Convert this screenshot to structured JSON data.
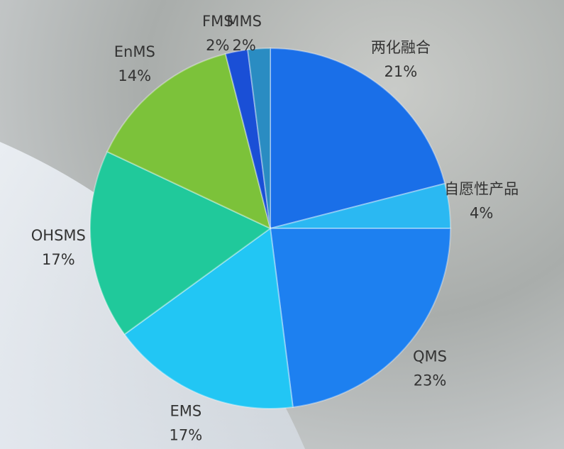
{
  "chart_data": {
    "type": "pie",
    "categories": [
      "两化融合",
      "自愿性产品",
      "QMS",
      "EMS",
      "OHSMS",
      "EnMS",
      "FMS",
      "MMS"
    ],
    "values": [
      21,
      4,
      23,
      17,
      17,
      14,
      2,
      2
    ],
    "value_labels": [
      "21%",
      "4%",
      "23%",
      "17%",
      "17%",
      "14%",
      "2%",
      "2%"
    ],
    "colors": [
      "#1a6fe8",
      "#2bb8f2",
      "#1d80f0",
      "#22c6f4",
      "#20c99b",
      "#7cc23a",
      "#1a4fd6",
      "#2a8cc2"
    ]
  }
}
